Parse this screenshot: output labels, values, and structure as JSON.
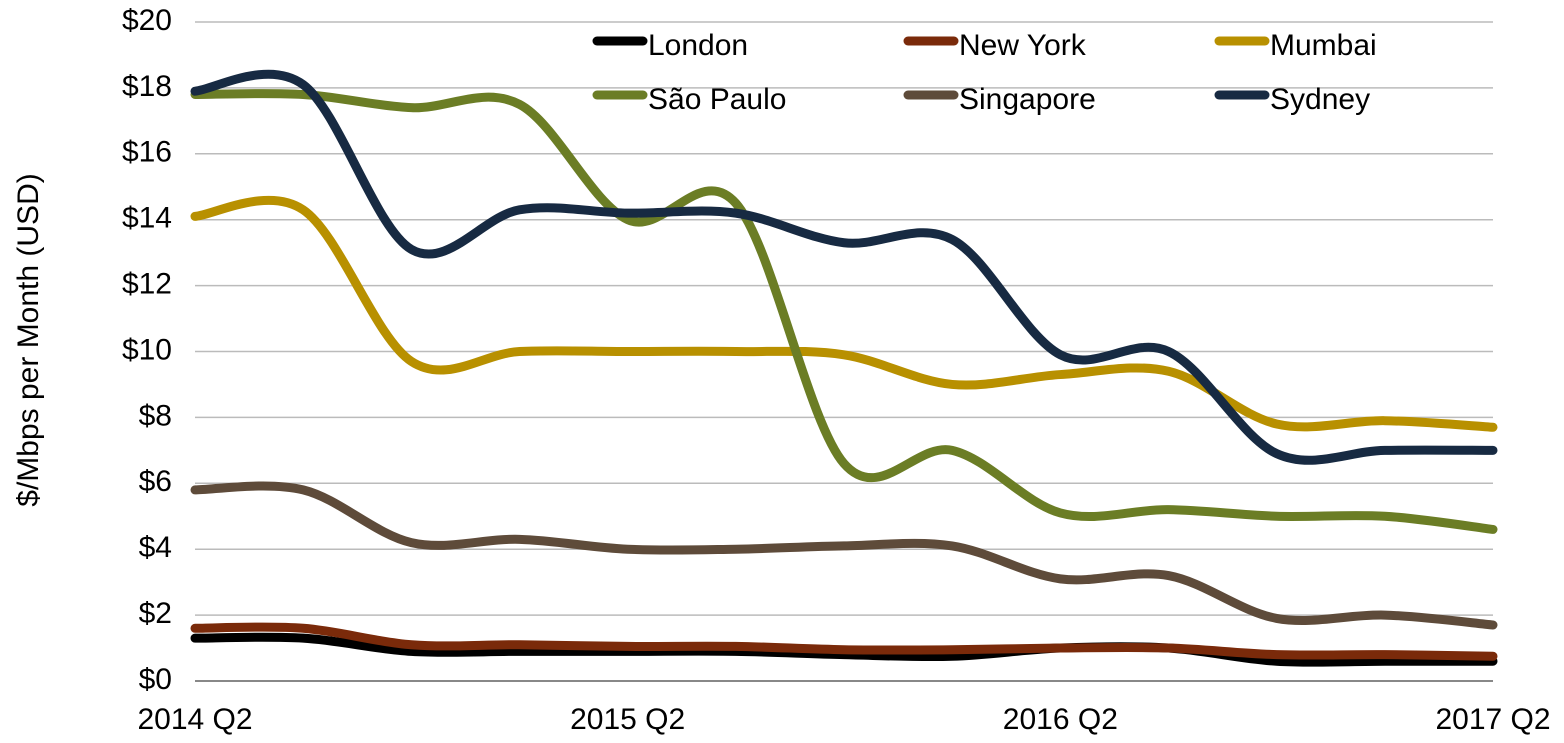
{
  "chart_data": {
    "type": "line",
    "ylabel": "$/Mbps per Month (USD)",
    "categories": [
      "2014 Q2",
      null,
      null,
      null,
      "2015 Q2",
      null,
      null,
      null,
      "2016 Q2",
      null,
      null,
      null,
      "2017 Q2"
    ],
    "series": [
      {
        "name": "London",
        "color": "#000000",
        "values": [
          1.3,
          1.3,
          0.9,
          0.9,
          0.9,
          0.9,
          0.8,
          0.75,
          1.0,
          1.0,
          0.6,
          0.6,
          0.6
        ]
      },
      {
        "name": "New York",
        "color": "#7a2a0a",
        "values": [
          1.6,
          1.6,
          1.1,
          1.1,
          1.05,
          1.05,
          0.95,
          0.95,
          1.0,
          1.0,
          0.8,
          0.8,
          0.75
        ]
      },
      {
        "name": "Mumbai",
        "color": "#b89000",
        "values": [
          14.1,
          14.3,
          9.7,
          10.0,
          10.0,
          10.0,
          9.9,
          9.0,
          9.3,
          9.4,
          7.8,
          7.9,
          7.7
        ]
      },
      {
        "name": "São Paulo",
        "color": "#6b7d25",
        "values": [
          17.8,
          17.8,
          17.4,
          17.5,
          14.0,
          14.5,
          6.6,
          7.0,
          5.1,
          5.2,
          5.0,
          5.0,
          4.6
        ]
      },
      {
        "name": "Singapore",
        "color": "#5e4b3a",
        "values": [
          5.8,
          5.8,
          4.2,
          4.3,
          4.0,
          4.0,
          4.1,
          4.1,
          3.1,
          3.2,
          1.9,
          2.0,
          1.7
        ]
      },
      {
        "name": "Sydney",
        "color": "#172a42",
        "values": [
          17.9,
          18.1,
          13.1,
          14.3,
          14.2,
          14.2,
          13.3,
          13.4,
          9.9,
          10.0,
          6.9,
          7.0,
          7.0
        ]
      }
    ],
    "ylim": [
      0,
      20
    ],
    "yticks": [
      {
        "value": 0,
        "label": "$0"
      },
      {
        "value": 2,
        "label": "$2"
      },
      {
        "value": 4,
        "label": "$4"
      },
      {
        "value": 6,
        "label": "$6"
      },
      {
        "value": 8,
        "label": "$8"
      },
      {
        "value": 10,
        "label": "$10"
      },
      {
        "value": 12,
        "label": "$12"
      },
      {
        "value": 14,
        "label": "$14"
      },
      {
        "value": 16,
        "label": "$16"
      },
      {
        "value": 18,
        "label": "$18"
      },
      {
        "value": 20,
        "label": "$20"
      }
    ],
    "grid": true,
    "legend": "top"
  }
}
